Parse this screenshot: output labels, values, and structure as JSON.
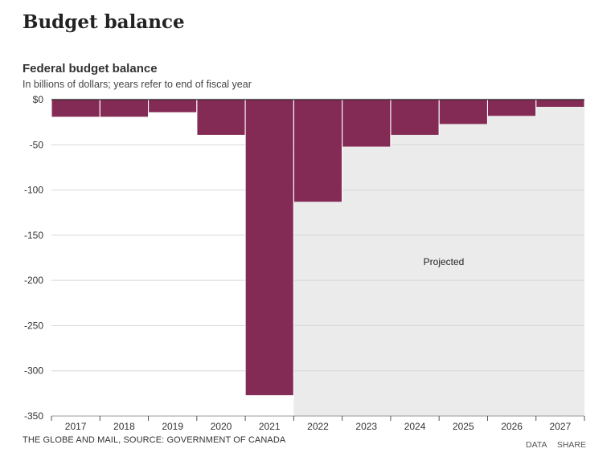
{
  "page": {
    "title": "Budget balance"
  },
  "chart_data": {
    "type": "bar",
    "title": "Federal budget balance",
    "subtitle": "In billions of dollars; years refer to end of fiscal year",
    "categories": [
      "2017",
      "2018",
      "2019",
      "2020",
      "2021",
      "2022",
      "2023",
      "2024",
      "2025",
      "2026",
      "2027"
    ],
    "values": [
      -19,
      -19,
      -14,
      -39,
      -327,
      -113,
      -52,
      -39,
      -27,
      -18,
      -8
    ],
    "ylim": [
      -350,
      0
    ],
    "yticks": [
      0,
      -50,
      -100,
      -150,
      -200,
      -250,
      -300,
      -350
    ],
    "ytick_labels": [
      "$0",
      "-50",
      "-100",
      "-150",
      "-200",
      "-250",
      "-300",
      "-350"
    ],
    "xlabel": "",
    "ylabel": "",
    "grid": true,
    "projected_from": "2022",
    "projected_label": "Projected",
    "bar_color": "#842b55",
    "projected_bg_color": "#ebebeb"
  },
  "footer": {
    "source": "THE GLOBE AND MAIL, SOURCE: GOVERNMENT OF CANADA",
    "data_link": "DATA",
    "share_link": "SHARE"
  }
}
